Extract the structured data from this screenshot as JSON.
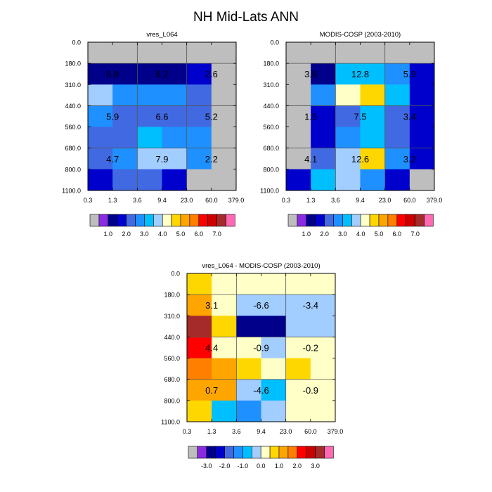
{
  "figure_title": "NH Mid-Lats ANN",
  "chart_data": [
    {
      "type": "heatmap",
      "title": "vres_L064",
      "x_tick_labels": [
        "0.3",
        "1.3",
        "3.6",
        "9.4",
        "23.0",
        "60.0",
        "379.0"
      ],
      "y_tick_labels": [
        "0.0",
        "180.0",
        "310.0",
        "440.0",
        "560.0",
        "680.0",
        "800.0",
        "1100.0"
      ],
      "values": [
        [
          null,
          null,
          null,
          null,
          null,
          null
        ],
        [
          0.6,
          0.6,
          0.6,
          0.6,
          1.0,
          null
        ],
        [
          2.7,
          1.6,
          1.6,
          1.6,
          1.4,
          null
        ],
        [
          1.6,
          1.4,
          1.4,
          1.4,
          1.4,
          null
        ],
        [
          1.4,
          1.4,
          2.4,
          1.6,
          1.6,
          null
        ],
        [
          1.4,
          1.6,
          2.7,
          2.7,
          1.6,
          null
        ],
        [
          1.0,
          1.4,
          1.4,
          1.0,
          null,
          null
        ]
      ],
      "labels": [
        {
          "col": 0.5,
          "row": 1,
          "text": "6.8"
        },
        {
          "col": 2.5,
          "row": 1,
          "text": "6.2"
        },
        {
          "col": 4.5,
          "row": 1,
          "text": "2.6"
        },
        {
          "col": 0.5,
          "row": 3,
          "text": "5.9"
        },
        {
          "col": 2.5,
          "row": 3,
          "text": "6.6"
        },
        {
          "col": 4.5,
          "row": 3,
          "text": "5.2"
        },
        {
          "col": 0.5,
          "row": 5,
          "text": "4.7"
        },
        {
          "col": 2.5,
          "row": 5,
          "text": "7.9"
        },
        {
          "col": 4.5,
          "row": 5,
          "text": "2.2"
        }
      ],
      "colorbar": {
        "colors": [
          "#bebebe",
          "#8a2be2",
          "#00008b",
          "#0000cd",
          "#4169e1",
          "#1e90ff",
          "#00bfff",
          "#a2cdff",
          "#ffffc8",
          "#ffd700",
          "#ffa500",
          "#ff7f00",
          "#ff0000",
          "#cd0000",
          "#a52a2a",
          "#ff69b4"
        ],
        "tick_labels": [
          "1.0",
          "2.0",
          "3.0",
          "4.0",
          "5.0",
          "6.0",
          "7.0"
        ],
        "first_tick_box": 1.5,
        "tick_box_step": 2
      }
    },
    {
      "type": "heatmap",
      "title": "MODIS-COSP (2003-2010)",
      "x_tick_labels": [
        "0.3",
        "1.3",
        "3.6",
        "9.4",
        "23.0",
        "60.0",
        "379.0"
      ],
      "y_tick_labels": [
        "0.0",
        "180.0",
        "310.0",
        "440.0",
        "560.0",
        "680.0",
        "800.0",
        "1100.0"
      ],
      "values": [
        [
          null,
          null,
          null,
          null,
          null,
          null
        ],
        [
          null,
          0.6,
          2.4,
          2.4,
          1.6,
          1.0
        ],
        [
          null,
          1.6,
          3.4,
          3.7,
          2.4,
          1.0
        ],
        [
          null,
          1.0,
          1.4,
          2.4,
          1.4,
          1.0
        ],
        [
          null,
          1.0,
          1.6,
          2.4,
          1.4,
          1.0
        ],
        [
          null,
          1.4,
          2.7,
          3.7,
          1.6,
          1.0
        ],
        [
          1.0,
          2.4,
          2.7,
          1.6,
          1.0,
          null
        ]
      ],
      "labels": [
        {
          "col": 0.5,
          "row": 1,
          "text": "3.6"
        },
        {
          "col": 2.5,
          "row": 1,
          "text": "12.8"
        },
        {
          "col": 4.5,
          "row": 1,
          "text": "5.9"
        },
        {
          "col": 0.5,
          "row": 3,
          "text": "1.5"
        },
        {
          "col": 2.5,
          "row": 3,
          "text": "7.5"
        },
        {
          "col": 4.5,
          "row": 3,
          "text": "3.4"
        },
        {
          "col": 0.5,
          "row": 5,
          "text": "4.1"
        },
        {
          "col": 2.5,
          "row": 5,
          "text": "12.6"
        },
        {
          "col": 4.5,
          "row": 5,
          "text": "3.2"
        }
      ],
      "colorbar": {
        "colors": [
          "#bebebe",
          "#8a2be2",
          "#00008b",
          "#0000cd",
          "#4169e1",
          "#1e90ff",
          "#00bfff",
          "#a2cdff",
          "#ffffc8",
          "#ffd700",
          "#ffa500",
          "#ff7f00",
          "#ff0000",
          "#cd0000",
          "#a52a2a",
          "#ff69b4"
        ],
        "tick_labels": [
          "1.0",
          "2.0",
          "3.0",
          "4.0",
          "5.0",
          "6.0",
          "7.0"
        ],
        "first_tick_box": 1.5,
        "tick_box_step": 2
      }
    },
    {
      "type": "heatmap",
      "title": "vres_L064 - MODIS-COSP (2003-2010)",
      "x_tick_labels": [
        "0.3",
        "1.3",
        "3.6",
        "9.4",
        "23.0",
        "60.0",
        "379.0"
      ],
      "y_tick_labels": [
        "0.0",
        "180.0",
        "310.0",
        "440.0",
        "560.0",
        "680.0",
        "800.0",
        "1100.0"
      ],
      "values": [
        [
          0.3,
          -0.2,
          -0.2,
          -0.2,
          -0.2,
          -0.2
        ],
        [
          0.7,
          -0.2,
          -0.9,
          -0.9,
          -0.9,
          -0.9
        ],
        [
          2.7,
          0.3,
          -3.4,
          -3.4,
          -0.9,
          -0.9
        ],
        [
          1.7,
          -0.2,
          -0.2,
          -0.9,
          -0.2,
          -0.2
        ],
        [
          1.4,
          0.7,
          0.3,
          -0.2,
          0.3,
          -0.2
        ],
        [
          0.7,
          0.7,
          -0.9,
          -1.4,
          -0.2,
          -0.2
        ],
        [
          0.3,
          -1.4,
          -1.9,
          -0.9,
          -0.2,
          -0.2
        ]
      ],
      "labels": [
        {
          "col": 0.5,
          "row": 1,
          "text": "3.1"
        },
        {
          "col": 2.5,
          "row": 1,
          "text": "-6.6"
        },
        {
          "col": 4.5,
          "row": 1,
          "text": "-3.4"
        },
        {
          "col": 0.5,
          "row": 3,
          "text": "4.4"
        },
        {
          "col": 2.5,
          "row": 3,
          "text": "-0.9"
        },
        {
          "col": 4.5,
          "row": 3,
          "text": "-0.2"
        },
        {
          "col": 0.5,
          "row": 5,
          "text": "0.7"
        },
        {
          "col": 2.5,
          "row": 5,
          "text": "-4.6"
        },
        {
          "col": 4.5,
          "row": 5,
          "text": "-0.9"
        }
      ],
      "colorbar": {
        "colors": [
          "#bebebe",
          "#8a2be2",
          "#00008b",
          "#0000cd",
          "#4169e1",
          "#1e90ff",
          "#00bfff",
          "#a2cdff",
          "#ffffc8",
          "#ffd700",
          "#ffa500",
          "#ff7f00",
          "#ff0000",
          "#cd0000",
          "#a52a2a",
          "#ff69b4"
        ],
        "tick_labels": [
          "-3.0",
          "-2.0",
          "-1.0",
          "0.0",
          "1.0",
          "2.0",
          "3.0"
        ],
        "first_tick_box": 1.5,
        "tick_box_step": 2
      }
    }
  ],
  "value_to_color": {
    "bounds_panels_1_2": [
      0.5,
      0.75,
      1.25,
      1.5,
      2.0,
      2.5,
      3.0,
      3.5,
      4.0,
      4.5,
      5.0,
      5.5,
      6.0,
      6.5,
      7.0
    ],
    "bounds_panel_3": [
      -3.5,
      -3.0,
      -2.5,
      -2.0,
      -1.5,
      -1.0,
      -0.5,
      0.0,
      0.5,
      1.0,
      1.5,
      2.0,
      2.5,
      3.0,
      3.5
    ]
  }
}
